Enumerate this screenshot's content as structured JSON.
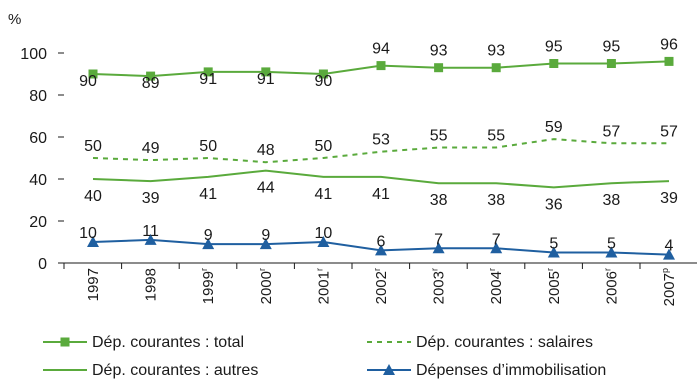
{
  "chart_data": {
    "type": "line",
    "ylabel": "%",
    "ylim": [
      0,
      100
    ],
    "yticks": [
      0,
      20,
      40,
      60,
      80,
      100
    ],
    "categories": [
      "1997",
      "1998",
      "1999",
      "2000",
      "2001",
      "2002",
      "2003",
      "2004",
      "2005",
      "2006",
      "2007"
    ],
    "category_marks": [
      "",
      "",
      "r",
      "r",
      "r",
      "r",
      "r",
      "r",
      "r",
      "r",
      "p"
    ],
    "series": [
      {
        "name": "Dép. courantes : total",
        "color": "#5aaa3c",
        "style": "solid",
        "marker": "square",
        "values": [
          90,
          89,
          91,
          91,
          90,
          94,
          93,
          93,
          95,
          95,
          96
        ],
        "labels": [
          "90",
          "89",
          "91",
          "91",
          "90",
          "94",
          "93",
          "93",
          "95",
          "95",
          "96"
        ]
      },
      {
        "name": "Dép. courantes : salaires",
        "color": "#5aaa3c",
        "style": "dashed",
        "marker": "none",
        "values": [
          50,
          49,
          50,
          48,
          50,
          53,
          55,
          55,
          59,
          57,
          57
        ],
        "labels": [
          "50",
          "49",
          "50",
          "48",
          "50",
          "53",
          "55",
          "55",
          "59",
          "57",
          "57"
        ]
      },
      {
        "name": "Dép. courantes : autres",
        "color": "#5aaa3c",
        "style": "solid",
        "marker": "none",
        "values": [
          40,
          39,
          41,
          44,
          41,
          41,
          38,
          38,
          36,
          38,
          39
        ],
        "labels": [
          "40",
          "39",
          "41",
          "44",
          "41",
          "41",
          "38",
          "38",
          "36",
          "38",
          "39"
        ]
      },
      {
        "name": "Dépenses d’immobilisation",
        "color": "#1f5fa0",
        "style": "solid",
        "marker": "triangle",
        "values": [
          10,
          11,
          9,
          9,
          10,
          6,
          7,
          7,
          5,
          5,
          4
        ],
        "labels": [
          "10",
          "11",
          "9",
          "9",
          "10",
          "6",
          "7",
          "7",
          "5",
          "5",
          "4"
        ]
      }
    ],
    "legend_position": "bottom",
    "grid": false
  }
}
